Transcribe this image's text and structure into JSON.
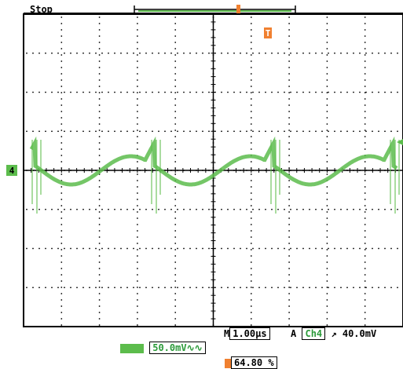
{
  "status": {
    "run_state": "Stop"
  },
  "trigger_bar": {
    "marker_label": "T"
  },
  "channel": {
    "marker_label": "4",
    "scale_text": "50.0mV",
    "unit_suffix": "∿∿",
    "color": "#5cbc4c",
    "coupling_label": "Ch4"
  },
  "horizontal": {
    "prefix": "M",
    "time_per_div": "1.00µs",
    "trigger_prefix": "A",
    "trigger_source": "Ch4",
    "trigger_level": "40.0mV"
  },
  "position": {
    "value": "64.80 %"
  },
  "colors": {
    "trace": "#5cbc4c",
    "trigger": "#f08030",
    "grid": "#000000"
  },
  "waveform": {
    "description_units": "divisions",
    "grid_divisions": {
      "x": 10,
      "y": 8
    }
  }
}
